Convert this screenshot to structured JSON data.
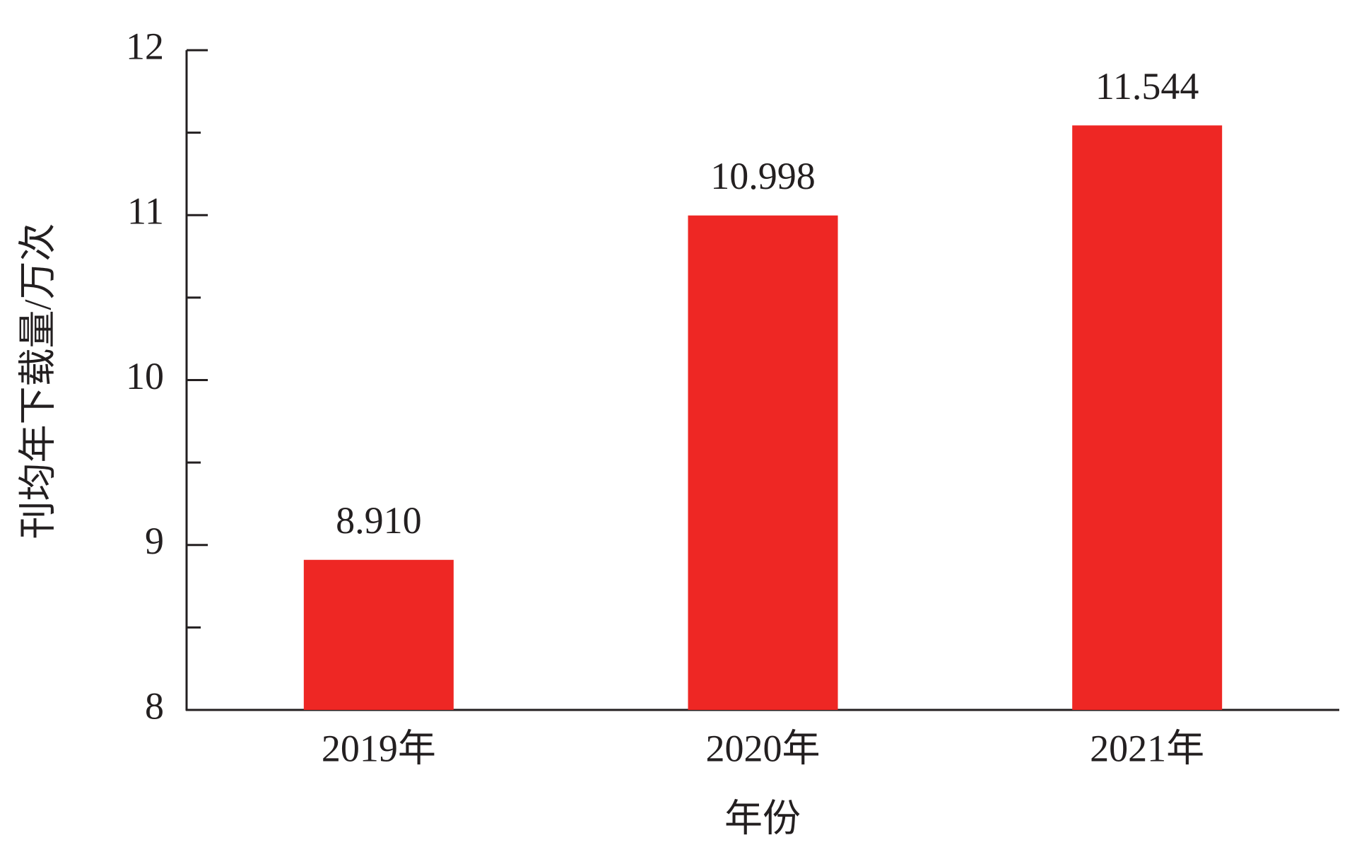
{
  "chart_data": {
    "type": "bar",
    "x_label": "年份",
    "y_label": "刊均年下载量/万次",
    "categories": [
      "2019年",
      "2020年",
      "2021年"
    ],
    "values": [
      8.91,
      10.998,
      11.544
    ],
    "value_labels": [
      "8.910",
      "10.998",
      "11.544"
    ],
    "color": "#ee2724",
    "ylim": [
      8,
      12
    ],
    "yticks": [
      8,
      9,
      10,
      11,
      12
    ],
    "yminorticks": [
      8.5,
      9.5,
      10.5,
      11.5
    ],
    "grid": false
  }
}
